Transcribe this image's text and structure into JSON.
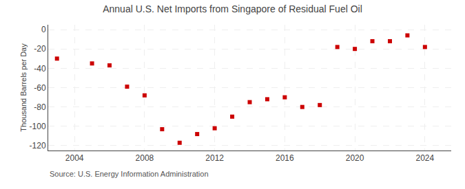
{
  "chart_data": {
    "type": "scatter",
    "title": "Annual U.S. Net Imports from Singapore of Residual Fuel Oil",
    "ylabel": "Thousand Barrels per Day",
    "annotations": [
      "Source: U.S. Energy Information Administration"
    ],
    "x": [
      2003,
      2005,
      2006,
      2007,
      2008,
      2009,
      2010,
      2011,
      2012,
      2013,
      2014,
      2015,
      2016,
      2017,
      2018,
      2019,
      2020,
      2021,
      2022,
      2023,
      2024
    ],
    "values": [
      -30,
      -35,
      -37,
      -59,
      -68,
      -103,
      -117,
      -108,
      -102,
      -90,
      -75,
      -72,
      -70,
      -80,
      -78,
      -18,
      -20,
      -12,
      -12,
      -6,
      -18
    ],
    "color": "#cc0000",
    "marker": "square",
    "xlim": [
      2002.5,
      2025.5
    ],
    "xticks": [
      2004,
      2008,
      2012,
      2016,
      2020,
      2024
    ],
    "ylim": [
      -125,
      5
    ],
    "yticks": [
      0,
      -20,
      -40,
      -60,
      -80,
      -100,
      -120
    ],
    "grid": true
  }
}
